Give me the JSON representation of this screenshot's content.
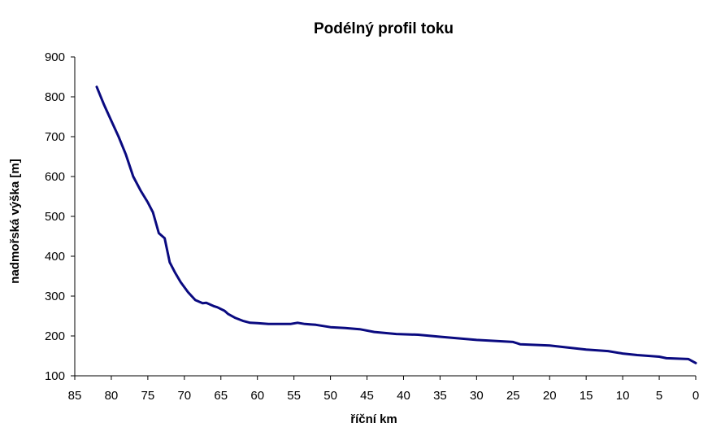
{
  "chart_data": {
    "type": "line",
    "title": "Podélný profil toku",
    "xlabel": "říční km",
    "ylabel": "nadmořská výška [m]",
    "xlim": [
      85,
      0
    ],
    "ylim": [
      100,
      900
    ],
    "x_reversed": true,
    "x_ticks": [
      85,
      80,
      75,
      70,
      65,
      60,
      55,
      50,
      45,
      40,
      35,
      30,
      25,
      20,
      15,
      10,
      5,
      0
    ],
    "y_ticks": [
      100,
      200,
      300,
      400,
      500,
      600,
      700,
      800,
      900
    ],
    "grid": false,
    "legend": "none",
    "series": [
      {
        "color": "#0a0a80",
        "x": [
          82,
          81,
          80,
          79,
          78,
          77,
          76,
          75,
          74.3,
          73.5,
          72.7,
          72,
          71.3,
          70.5,
          69.5,
          68.5,
          67.5,
          67,
          66,
          65.5,
          64.5,
          64,
          63,
          62,
          61,
          60,
          58.5,
          57,
          55.5,
          54.5,
          53.5,
          52,
          50,
          48,
          46,
          44,
          41,
          38,
          35,
          30,
          25,
          24,
          20,
          15,
          12,
          10,
          8,
          5,
          4,
          1,
          0
        ],
        "y": [
          825,
          780,
          740,
          700,
          655,
          600,
          565,
          535,
          510,
          458,
          445,
          385,
          360,
          335,
          310,
          290,
          282,
          283,
          275,
          272,
          263,
          255,
          245,
          238,
          233,
          232,
          230,
          230,
          230,
          233,
          230,
          228,
          222,
          220,
          217,
          210,
          205,
          203,
          198,
          190,
          185,
          179,
          176,
          166,
          162,
          156,
          152,
          148,
          144,
          142,
          132
        ]
      }
    ]
  }
}
